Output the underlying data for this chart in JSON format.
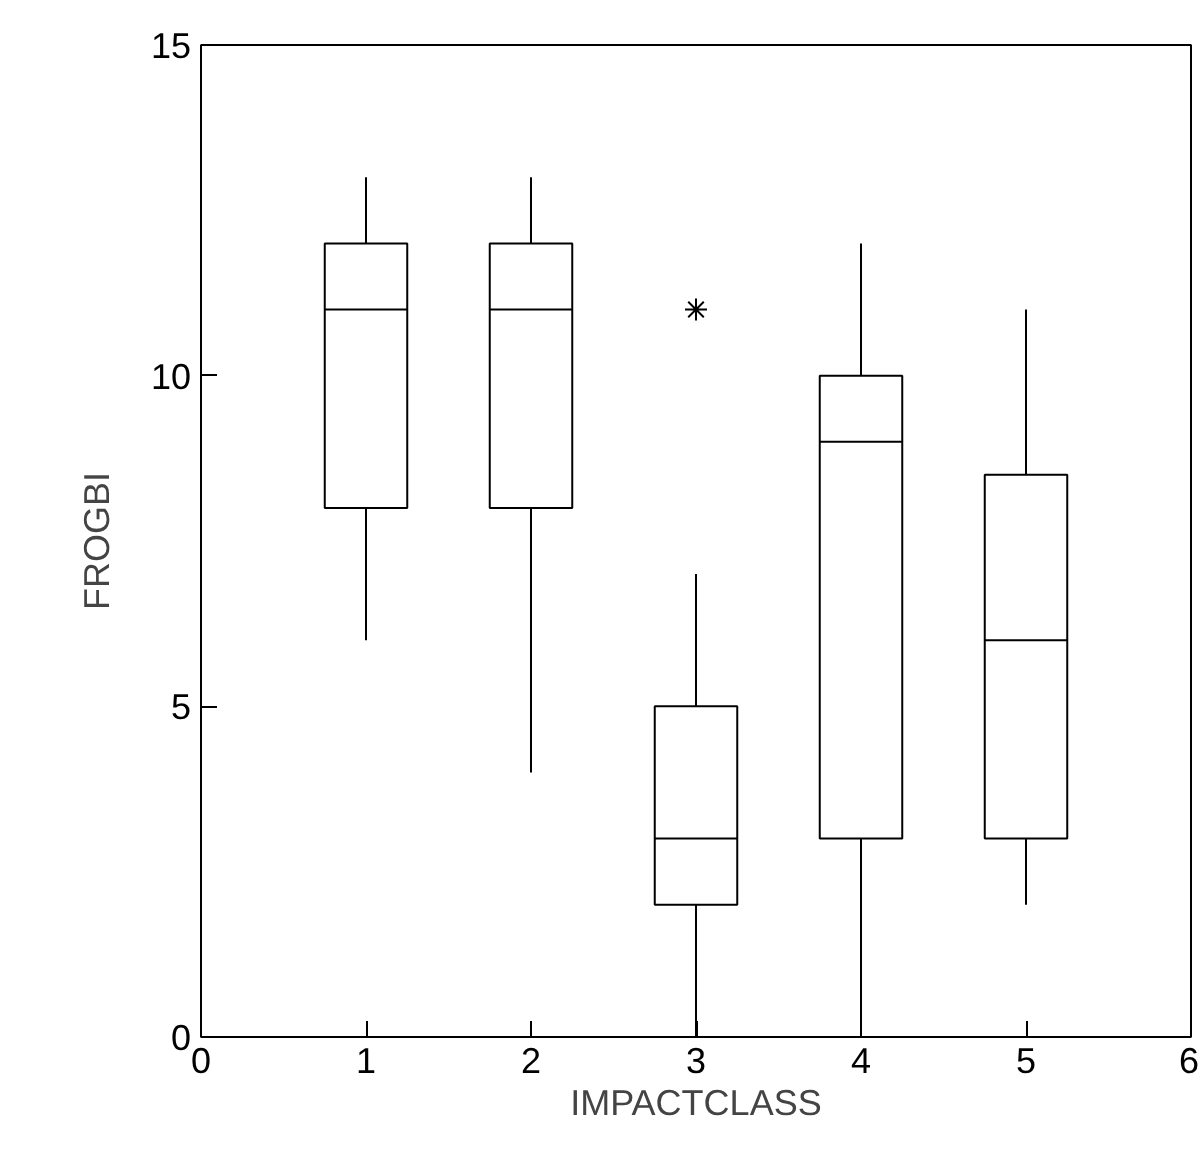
{
  "chart_data": {
    "type": "box",
    "xlabel": "IMPACTCLASS",
    "ylabel": "FROGBI",
    "x": [
      1,
      2,
      3,
      4,
      5
    ],
    "boxes": [
      {
        "low": 6,
        "q1": 8,
        "median": 11,
        "q3": 12,
        "high": 13
      },
      {
        "low": 4,
        "q1": 8,
        "median": 11,
        "q3": 12,
        "high": 13
      },
      {
        "low": 0,
        "q1": 2,
        "median": 3,
        "q3": 5,
        "high": 7,
        "outliers": [
          11
        ]
      },
      {
        "low": 0,
        "q1": 3,
        "median": 9,
        "q3": 10,
        "high": 12
      },
      {
        "low": 2,
        "q1": 3,
        "median": 6,
        "q3": 8.5,
        "high": 11
      }
    ],
    "xlim": [
      0,
      6
    ],
    "xticks": [
      0,
      1,
      2,
      3,
      4,
      5,
      6
    ],
    "ylim": [
      0,
      15
    ],
    "yticks": [
      0,
      5,
      10,
      15
    ],
    "grid": false
  }
}
